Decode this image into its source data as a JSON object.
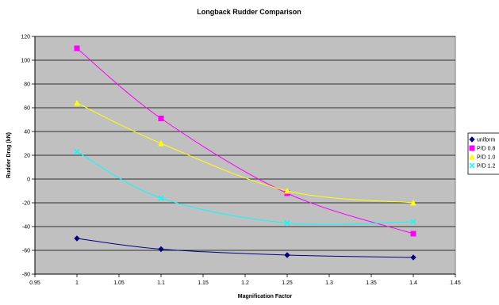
{
  "chart_data": {
    "type": "line",
    "title": "Longback Rudder Comparison",
    "xlabel": "Magnification Factor",
    "ylabel": "Rudder Drag (kN)",
    "xlim": [
      0.95,
      1.45
    ],
    "ylim": [
      -80,
      120
    ],
    "xticks": [
      "0.95",
      "1",
      "1.05",
      "1.1",
      "1.15",
      "1.2",
      "1.25",
      "1.3",
      "1.35",
      "1.4",
      "1.45"
    ],
    "yticks": [
      "120",
      "100",
      "80",
      "60",
      "40",
      "20",
      "0",
      "-20",
      "-40",
      "-60",
      "-80"
    ],
    "grid": "horizontal",
    "plot_background": "#c0c0c0",
    "legend_position": "right",
    "series": [
      {
        "name": "uniform",
        "color": "#000080",
        "marker": "diamond",
        "x": [
          1.0,
          1.1,
          1.25,
          1.4
        ],
        "y": [
          -50,
          -59,
          -64,
          -66
        ]
      },
      {
        "name": "P/D 0.8",
        "color": "#ff00ff",
        "marker": "square",
        "x": [
          1.0,
          1.1,
          1.25,
          1.4
        ],
        "y": [
          110,
          51,
          -12,
          -46
        ]
      },
      {
        "name": "P/D 1.0",
        "color": "#ffff00",
        "marker": "triangle",
        "x": [
          1.0,
          1.1,
          1.25,
          1.4
        ],
        "y": [
          64,
          30,
          -10,
          -20
        ]
      },
      {
        "name": "P/D 1.2",
        "color": "#00ffff",
        "marker": "x",
        "x": [
          1.0,
          1.1,
          1.25,
          1.4
        ],
        "y": [
          23,
          -16,
          -37,
          -36
        ]
      }
    ]
  }
}
